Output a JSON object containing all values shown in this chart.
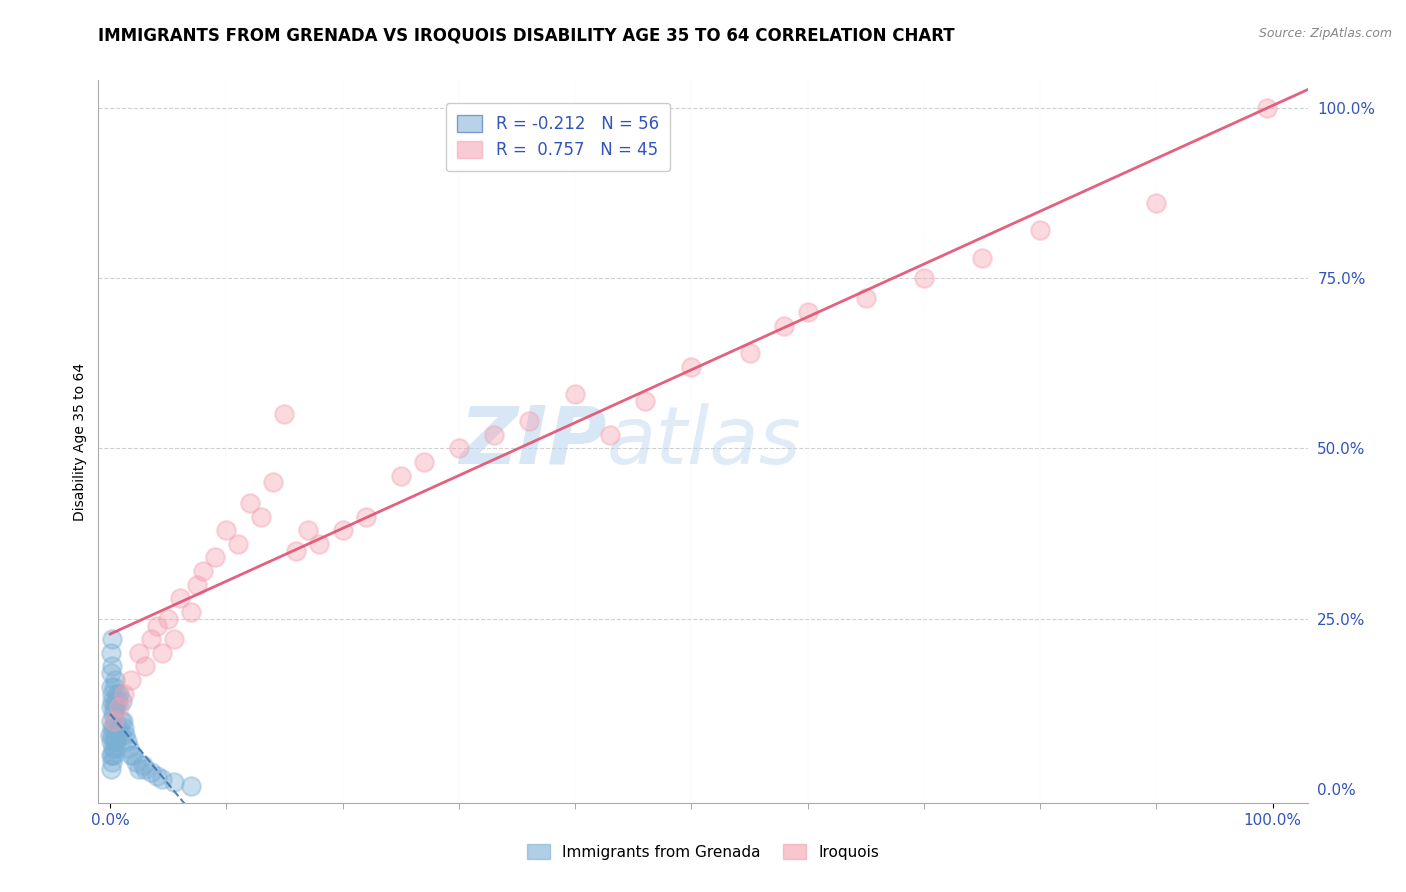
{
  "title": "IMMIGRANTS FROM GRENADA VS IROQUOIS DISABILITY AGE 35 TO 64 CORRELATION CHART",
  "source": "Source: ZipAtlas.com",
  "ylabel": "Disability Age 35 to 64",
  "legend_labels": [
    "Immigrants from Grenada",
    "Iroquois"
  ],
  "r_grenada": -0.212,
  "n_grenada": 56,
  "r_iroquois": 0.757,
  "n_iroquois": 45,
  "blue_color": "#7BAFD4",
  "pink_color": "#F4A0B0",
  "blue_line_color": "#3A6EAA",
  "pink_line_color": "#E05070",
  "watermark_zip": "ZIP",
  "watermark_atlas": "atlas",
  "xticks_major": [
    0.0,
    100.0
  ],
  "xticks_minor": [
    10.0,
    20.0,
    30.0,
    40.0,
    50.0,
    60.0,
    70.0,
    80.0,
    90.0
  ],
  "yticks_major": [
    0.0,
    25.0,
    50.0,
    75.0,
    100.0
  ],
  "xlim": [
    -1,
    103
  ],
  "ylim": [
    -2,
    104
  ],
  "blue_scatter_x": [
    0.0,
    0.05,
    0.05,
    0.05,
    0.1,
    0.1,
    0.1,
    0.1,
    0.1,
    0.15,
    0.15,
    0.15,
    0.2,
    0.2,
    0.2,
    0.2,
    0.2,
    0.25,
    0.25,
    0.3,
    0.3,
    0.3,
    0.35,
    0.35,
    0.4,
    0.4,
    0.4,
    0.45,
    0.45,
    0.5,
    0.5,
    0.6,
    0.6,
    0.7,
    0.7,
    0.8,
    0.8,
    0.9,
    1.0,
    1.0,
    1.1,
    1.2,
    1.3,
    1.5,
    1.6,
    1.8,
    2.0,
    2.2,
    2.5,
    2.8,
    3.0,
    3.5,
    4.0,
    4.5,
    5.5,
    7.0
  ],
  "blue_scatter_y": [
    8.0,
    5.0,
    10.0,
    15.0,
    3.0,
    7.0,
    12.0,
    17.0,
    20.0,
    5.0,
    9.0,
    14.0,
    4.0,
    8.0,
    13.0,
    18.0,
    22.0,
    6.0,
    11.0,
    5.0,
    9.0,
    15.0,
    7.0,
    12.0,
    6.0,
    10.0,
    16.0,
    8.0,
    13.0,
    7.0,
    12.0,
    9.0,
    14.0,
    8.0,
    13.0,
    9.0,
    14.0,
    10.0,
    8.0,
    13.0,
    10.0,
    9.0,
    8.0,
    7.0,
    6.0,
    5.0,
    5.0,
    4.0,
    3.0,
    3.5,
    3.0,
    2.5,
    2.0,
    1.5,
    1.0,
    0.5
  ],
  "pink_scatter_x": [
    0.3,
    0.8,
    1.2,
    1.8,
    2.5,
    3.0,
    3.5,
    4.0,
    4.5,
    5.0,
    5.5,
    6.0,
    7.0,
    7.5,
    8.0,
    9.0,
    10.0,
    11.0,
    12.0,
    13.0,
    14.0,
    15.0,
    16.0,
    17.0,
    18.0,
    20.0,
    22.0,
    25.0,
    27.0,
    30.0,
    33.0,
    36.0,
    40.0,
    43.0,
    46.0,
    50.0,
    55.0,
    58.0,
    60.0,
    65.0,
    70.0,
    75.0,
    80.0,
    90.0,
    99.5
  ],
  "pink_scatter_y": [
    10.0,
    12.0,
    14.0,
    16.0,
    20.0,
    18.0,
    22.0,
    24.0,
    20.0,
    25.0,
    22.0,
    28.0,
    26.0,
    30.0,
    32.0,
    34.0,
    38.0,
    36.0,
    42.0,
    40.0,
    45.0,
    55.0,
    35.0,
    38.0,
    36.0,
    38.0,
    40.0,
    46.0,
    48.0,
    50.0,
    52.0,
    54.0,
    58.0,
    52.0,
    57.0,
    62.0,
    64.0,
    68.0,
    70.0,
    72.0,
    75.0,
    78.0,
    82.0,
    86.0,
    100.0
  ],
  "title_fontsize": 12,
  "axis_label_fontsize": 10,
  "tick_fontsize": 11,
  "marker_size": 180,
  "marker_alpha": 0.4,
  "marker_linewidth": 1.5
}
